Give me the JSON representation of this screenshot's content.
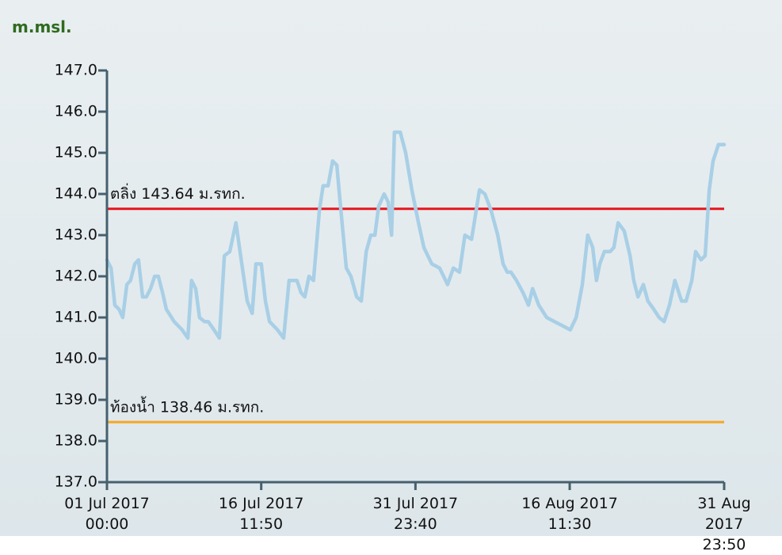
{
  "chart_data": {
    "type": "line",
    "y_axis_label": "m.msl.",
    "xlim": [
      "2017-07-01 00:00",
      "2017-08-31 23:50"
    ],
    "xticks": [
      {
        "value": "2017-07-01 00:00",
        "label": "01 Jul 2017\n00:00"
      },
      {
        "value": "2017-07-16 11:50",
        "label": "16 Jul 2017\n11:50"
      },
      {
        "value": "2017-07-31 23:40",
        "label": "31 Jul 2017\n23:40"
      },
      {
        "value": "2017-08-16 11:30",
        "label": "16 Aug 2017\n11:30"
      },
      {
        "value": "2017-08-31 23:50",
        "label": "31 Aug 2017\n23:50"
      }
    ],
    "ylim": [
      137,
      147
    ],
    "yticks": [
      {
        "value": 137,
        "label": "137.0"
      },
      {
        "value": 138,
        "label": "138.0"
      },
      {
        "value": 139,
        "label": "139.0"
      },
      {
        "value": 140,
        "label": "140.0"
      },
      {
        "value": 141,
        "label": "141.0"
      },
      {
        "value": 142,
        "label": "142.0"
      },
      {
        "value": 143,
        "label": "143.0"
      },
      {
        "value": 144,
        "label": "144.0"
      },
      {
        "value": 145,
        "label": "145.0"
      },
      {
        "value": 146,
        "label": "146.0"
      },
      {
        "value": 147,
        "label": "147.0"
      }
    ],
    "reference_lines": [
      {
        "label": "ตลิ่ง 143.64 ม.รทก.",
        "value": 143.64,
        "color": "#e8141b"
      },
      {
        "label": "ท้องน้ำ 138.46 ม.รทก.",
        "value": 138.46,
        "color": "#f5a623"
      }
    ],
    "color": "#a8cfe6",
    "x": [
      "2017-07-01 00:00",
      "2017-07-01 10:00",
      "2017-07-01 19:00",
      "2017-07-02 05:00",
      "2017-07-02 14:00",
      "2017-07-03 00:00",
      "2017-07-03 09:00",
      "2017-07-03 19:00",
      "2017-07-04 04:00",
      "2017-07-04 14:00",
      "2017-07-04 23:00",
      "2017-07-05 09:00",
      "2017-07-05 19:00",
      "2017-07-06 04:00",
      "2017-07-06 14:00",
      "2017-07-06 23:00",
      "2017-07-07 18:00",
      "2017-07-08 13:00",
      "2017-07-09 03:00",
      "2017-07-09 12:00",
      "2017-07-09 22:00",
      "2017-07-10 07:00",
      "2017-07-10 19:00",
      "2017-07-11 04:00",
      "2017-07-11 18:00",
      "2017-07-12 07:00",
      "2017-07-12 19:00",
      "2017-07-13 08:00",
      "2017-07-13 23:00",
      "2017-07-14 13:00",
      "2017-07-15 02:00",
      "2017-07-15 14:00",
      "2017-07-15 23:00",
      "2017-07-16 12:00",
      "2017-07-16 22:00",
      "2017-07-17 08:00",
      "2017-07-18 03:00",
      "2017-07-18 18:00",
      "2017-07-19 07:00",
      "2017-07-20 02:00",
      "2017-07-20 12:00",
      "2017-07-20 21:00",
      "2017-07-21 07:00",
      "2017-07-21 18:00",
      "2017-07-22 08:00",
      "2017-07-22 17:00",
      "2017-07-23 05:00",
      "2017-07-23 16:00",
      "2017-07-24 02:00",
      "2017-07-24 11:00",
      "2017-07-25 01:00",
      "2017-07-25 12:00",
      "2017-07-26 02:00",
      "2017-07-26 13:00",
      "2017-07-27 01:00",
      "2017-07-27 12:00",
      "2017-07-27 22:00",
      "2017-07-28 07:00",
      "2017-07-28 20:00",
      "2017-07-29 06:00",
      "2017-07-29 14:00",
      "2017-07-29 21:00",
      "2017-07-30 11:00",
      "2017-07-31 00:00",
      "2017-07-31 15:00",
      "2017-08-01 07:00",
      "2017-08-01 20:00",
      "2017-08-02 15:00",
      "2017-08-03 10:00",
      "2017-08-04 05:00",
      "2017-08-04 19:00",
      "2017-08-05 10:00",
      "2017-08-05 23:00",
      "2017-08-06 15:00",
      "2017-08-07 10:00",
      "2017-08-07 23:00",
      "2017-08-08 14:00",
      "2017-08-09 06:00",
      "2017-08-09 19:00",
      "2017-08-10 05:00",
      "2017-08-10 14:00",
      "2017-08-11 03:00",
      "2017-08-11 19:00",
      "2017-08-12 08:00",
      "2017-08-12 18:00",
      "2017-08-13 09:00",
      "2017-08-14 04:00",
      "2017-08-14 23:00",
      "2017-08-15 18:00",
      "2017-08-16 13:00",
      "2017-08-17 03:00",
      "2017-08-17 18:00",
      "2017-08-18 07:00",
      "2017-08-18 19:00",
      "2017-08-19 04:00",
      "2017-08-19 12:00",
      "2017-08-19 23:00",
      "2017-08-20 13:00",
      "2017-08-20 22:00",
      "2017-08-21 08:00",
      "2017-08-21 23:00",
      "2017-08-22 13:00",
      "2017-08-22 22:00",
      "2017-08-23 08:00",
      "2017-08-23 21:00",
      "2017-08-24 08:00",
      "2017-08-24 22:00",
      "2017-08-25 11:00",
      "2017-08-25 23:00",
      "2017-08-26 12:00",
      "2017-08-27 01:00",
      "2017-08-27 17:00",
      "2017-08-28 04:00",
      "2017-08-28 18:00",
      "2017-08-29 03:00",
      "2017-08-29 16:00",
      "2017-08-30 02:00",
      "2017-08-30 12:00",
      "2017-08-30 21:00",
      "2017-08-31 10:00",
      "2017-08-31 23:50"
    ],
    "values": [
      142.4,
      142.2,
      141.3,
      141.2,
      141.0,
      141.8,
      141.9,
      142.3,
      142.4,
      141.5,
      141.5,
      141.7,
      142.0,
      142.0,
      141.6,
      141.2,
      140.9,
      140.7,
      140.5,
      141.9,
      141.7,
      141.0,
      140.9,
      140.9,
      140.7,
      140.5,
      142.5,
      142.6,
      143.3,
      142.3,
      141.4,
      141.1,
      142.3,
      142.3,
      141.4,
      140.9,
      140.7,
      140.5,
      141.9,
      141.9,
      141.6,
      141.5,
      142.0,
      141.9,
      143.6,
      144.2,
      144.2,
      144.8,
      144.7,
      143.7,
      142.2,
      142.0,
      141.5,
      141.4,
      142.6,
      143.0,
      143.0,
      143.7,
      144.0,
      143.8,
      143.0,
      145.5,
      145.5,
      145.0,
      144.1,
      143.3,
      142.7,
      142.3,
      142.2,
      141.8,
      142.2,
      142.1,
      143.0,
      142.9,
      144.1,
      144.0,
      143.6,
      143.0,
      142.3,
      142.1,
      142.1,
      141.9,
      141.6,
      141.3,
      141.7,
      141.3,
      141.0,
      140.9,
      140.8,
      140.7,
      141.0,
      141.8,
      143.0,
      142.7,
      141.9,
      142.3,
      142.6,
      142.6,
      142.7,
      143.3,
      143.1,
      142.5,
      141.9,
      141.5,
      141.8,
      141.4,
      141.2,
      141.0,
      140.9,
      141.3,
      141.9,
      141.4,
      141.4,
      141.9,
      142.6,
      142.4,
      142.5,
      144.1,
      144.8,
      145.2,
      145.2
    ]
  }
}
